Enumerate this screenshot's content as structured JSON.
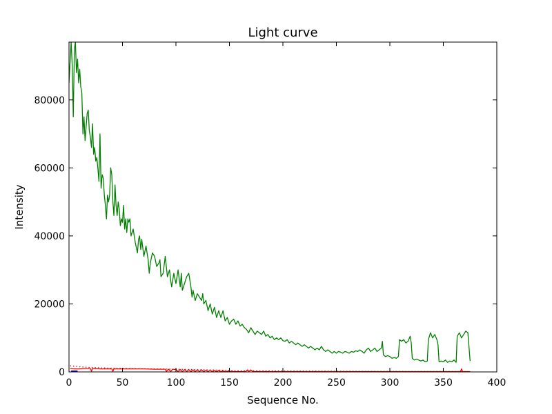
{
  "chart_data": {
    "type": "line",
    "title": "Light curve",
    "xlabel": "Sequence No.",
    "ylabel": "Intensity",
    "xlim": [
      0,
      400
    ],
    "ylim": [
      0,
      97000
    ],
    "xticks": [
      0,
      50,
      100,
      150,
      200,
      250,
      300,
      350,
      400
    ],
    "yticks": [
      0,
      20000,
      40000,
      60000,
      80000
    ],
    "xtick_labels": [
      "0",
      "50",
      "100",
      "150",
      "200",
      "250",
      "300",
      "350",
      "400"
    ],
    "ytick_labels": [
      "0",
      "20000",
      "40000",
      "60000",
      "80000"
    ],
    "grid": false,
    "legend": "none",
    "series": [
      {
        "color": "#008000",
        "style": "solid",
        "points": [
          [
            0,
            85000
          ],
          [
            2,
            97000
          ],
          [
            3,
            90000
          ],
          [
            4,
            75000
          ],
          [
            5,
            95000
          ],
          [
            6,
            97000
          ],
          [
            7,
            88000
          ],
          [
            8,
            92000
          ],
          [
            9,
            85000
          ],
          [
            10,
            89000
          ],
          [
            11,
            84000
          ],
          [
            12,
            82000
          ],
          [
            13,
            70000
          ],
          [
            14,
            75000
          ],
          [
            15,
            68000
          ],
          [
            16,
            72000
          ],
          [
            17,
            76000
          ],
          [
            18,
            77000
          ],
          [
            19,
            71000
          ],
          [
            20,
            69000
          ],
          [
            21,
            66000
          ],
          [
            22,
            73000
          ],
          [
            23,
            64000
          ],
          [
            24,
            66000
          ],
          [
            25,
            62000
          ],
          [
            26,
            63000
          ],
          [
            27,
            60000
          ],
          [
            28,
            56000
          ],
          [
            29,
            70000
          ],
          [
            30,
            54000
          ],
          [
            31,
            58000
          ],
          [
            32,
            57000
          ],
          [
            33,
            52000
          ],
          [
            34,
            49000
          ],
          [
            35,
            45000
          ],
          [
            36,
            52000
          ],
          [
            37,
            50000
          ],
          [
            38,
            52000
          ],
          [
            39,
            60000
          ],
          [
            40,
            58000
          ],
          [
            41,
            50000
          ],
          [
            42,
            46000
          ],
          [
            43,
            55000
          ],
          [
            44,
            49000
          ],
          [
            45,
            46000
          ],
          [
            46,
            50000
          ],
          [
            47,
            48000
          ],
          [
            48,
            43000
          ],
          [
            49,
            45000
          ],
          [
            50,
            44000
          ],
          [
            51,
            49000
          ],
          [
            52,
            42000
          ],
          [
            53,
            45000
          ],
          [
            54,
            41000
          ],
          [
            55,
            45000
          ],
          [
            56,
            44000
          ],
          [
            57,
            45000
          ],
          [
            58,
            40000
          ],
          [
            60,
            42000
          ],
          [
            62,
            38000
          ],
          [
            64,
            35000
          ],
          [
            65,
            39000
          ],
          [
            66,
            40000
          ],
          [
            67,
            36000
          ],
          [
            68,
            39000
          ],
          [
            70,
            34000
          ],
          [
            72,
            37000
          ],
          [
            74,
            33000
          ],
          [
            75,
            29000
          ],
          [
            76,
            32000
          ],
          [
            78,
            35000
          ],
          [
            80,
            34000
          ],
          [
            82,
            31000
          ],
          [
            84,
            32000
          ],
          [
            85,
            33000
          ],
          [
            86,
            28000
          ],
          [
            88,
            29000
          ],
          [
            90,
            34000
          ],
          [
            92,
            28000
          ],
          [
            94,
            30000
          ],
          [
            95,
            27000
          ],
          [
            96,
            25000
          ],
          [
            98,
            29000
          ],
          [
            100,
            26000
          ],
          [
            102,
            30000
          ],
          [
            104,
            25000
          ],
          [
            105,
            29000
          ],
          [
            106,
            24000
          ],
          [
            108,
            26000
          ],
          [
            110,
            28000
          ],
          [
            112,
            29000
          ],
          [
            114,
            25000
          ],
          [
            115,
            22000
          ],
          [
            116,
            24000
          ],
          [
            118,
            21000
          ],
          [
            120,
            23000
          ],
          [
            122,
            22000
          ],
          [
            124,
            21000
          ],
          [
            125,
            23000
          ],
          [
            126,
            20000
          ],
          [
            128,
            21000
          ],
          [
            130,
            18000
          ],
          [
            132,
            20000
          ],
          [
            134,
            17000
          ],
          [
            136,
            19000
          ],
          [
            138,
            16000
          ],
          [
            140,
            18000
          ],
          [
            142,
            16000
          ],
          [
            144,
            18000
          ],
          [
            146,
            15000
          ],
          [
            148,
            16000
          ],
          [
            150,
            14000
          ],
          [
            152,
            15000
          ],
          [
            154,
            15500
          ],
          [
            156,
            14000
          ],
          [
            158,
            15000
          ],
          [
            160,
            13500
          ],
          [
            162,
            14000
          ],
          [
            164,
            13000
          ],
          [
            166,
            12500
          ],
          [
            168,
            11500
          ],
          [
            170,
            13000
          ],
          [
            172,
            12000
          ],
          [
            174,
            11000
          ],
          [
            176,
            12000
          ],
          [
            178,
            11500
          ],
          [
            180,
            11000
          ],
          [
            182,
            12000
          ],
          [
            184,
            10500
          ],
          [
            186,
            11000
          ],
          [
            188,
            10000
          ],
          [
            190,
            10500
          ],
          [
            192,
            9500
          ],
          [
            194,
            10000
          ],
          [
            196,
            9500
          ],
          [
            198,
            10000
          ],
          [
            200,
            9200
          ],
          [
            202,
            9000
          ],
          [
            204,
            9500
          ],
          [
            206,
            8500
          ],
          [
            208,
            9000
          ],
          [
            210,
            8500
          ],
          [
            212,
            8000
          ],
          [
            214,
            8500
          ],
          [
            216,
            8000
          ],
          [
            218,
            7500
          ],
          [
            220,
            8000
          ],
          [
            222,
            7500
          ],
          [
            224,
            7000
          ],
          [
            226,
            7500
          ],
          [
            228,
            7000
          ],
          [
            230,
            6500
          ],
          [
            232,
            7000
          ],
          [
            234,
            6500
          ],
          [
            236,
            7500
          ],
          [
            238,
            6500
          ],
          [
            240,
            6000
          ],
          [
            242,
            6500
          ],
          [
            244,
            6000
          ],
          [
            246,
            5500
          ],
          [
            248,
            6000
          ],
          [
            250,
            5500
          ],
          [
            252,
            6000
          ],
          [
            254,
            5800
          ],
          [
            256,
            5500
          ],
          [
            258,
            6000
          ],
          [
            260,
            5800
          ],
          [
            262,
            5500
          ],
          [
            264,
            6000
          ],
          [
            266,
            5800
          ],
          [
            268,
            6200
          ],
          [
            270,
            6000
          ],
          [
            272,
            6500
          ],
          [
            274,
            6000
          ],
          [
            276,
            5500
          ],
          [
            278,
            6500
          ],
          [
            280,
            7000
          ],
          [
            282,
            6000
          ],
          [
            284,
            6500
          ],
          [
            286,
            7000
          ],
          [
            288,
            6000
          ],
          [
            290,
            6500
          ],
          [
            292,
            7000
          ],
          [
            293,
            9000
          ],
          [
            294,
            5000
          ],
          [
            296,
            4500
          ],
          [
            298,
            4800
          ],
          [
            300,
            4500
          ],
          [
            302,
            4000
          ],
          [
            304,
            4200
          ],
          [
            306,
            4000
          ],
          [
            308,
            4500
          ],
          [
            309,
            9500
          ],
          [
            311,
            9000
          ],
          [
            313,
            9500
          ],
          [
            315,
            8500
          ],
          [
            317,
            9000
          ],
          [
            319,
            10500
          ],
          [
            320,
            8500
          ],
          [
            321,
            4000
          ],
          [
            323,
            3500
          ],
          [
            325,
            3800
          ],
          [
            327,
            3500
          ],
          [
            329,
            3200
          ],
          [
            331,
            3500
          ],
          [
            333,
            3000
          ],
          [
            335,
            3200
          ],
          [
            336,
            9500
          ],
          [
            338,
            11500
          ],
          [
            340,
            10000
          ],
          [
            342,
            11000
          ],
          [
            344,
            9500
          ],
          [
            345,
            8000
          ],
          [
            346,
            3000
          ],
          [
            348,
            3200
          ],
          [
            350,
            3000
          ],
          [
            352,
            3500
          ],
          [
            354,
            2800
          ],
          [
            356,
            3200
          ],
          [
            358,
            3000
          ],
          [
            360,
            3500
          ],
          [
            362,
            2800
          ],
          [
            363,
            10500
          ],
          [
            365,
            11500
          ],
          [
            367,
            10000
          ],
          [
            369,
            11000
          ],
          [
            371,
            12000
          ],
          [
            373,
            11500
          ],
          [
            375,
            3200
          ]
        ]
      },
      {
        "color": "#ff0000",
        "style": "solid",
        "points": [
          [
            1,
            1000
          ],
          [
            5,
            900
          ],
          [
            10,
            900
          ],
          [
            15,
            1000
          ],
          [
            20,
            1000
          ],
          [
            21,
            200
          ],
          [
            22,
            1000
          ],
          [
            30,
            900
          ],
          [
            40,
            900
          ],
          [
            41,
            200
          ],
          [
            42,
            900
          ],
          [
            50,
            900
          ],
          [
            60,
            900
          ],
          [
            70,
            900
          ],
          [
            80,
            800
          ],
          [
            90,
            800
          ],
          [
            91,
            150
          ],
          [
            93,
            800
          ],
          [
            95,
            150
          ],
          [
            97,
            800
          ],
          [
            100,
            700
          ],
          [
            102,
            100
          ],
          [
            104,
            700
          ],
          [
            106,
            100
          ],
          [
            108,
            700
          ],
          [
            110,
            100
          ],
          [
            112,
            700
          ],
          [
            114,
            100
          ],
          [
            116,
            600
          ],
          [
            118,
            100
          ],
          [
            120,
            600
          ],
          [
            122,
            100
          ],
          [
            124,
            600
          ],
          [
            126,
            100
          ],
          [
            128,
            500
          ],
          [
            130,
            100
          ],
          [
            132,
            500
          ],
          [
            134,
            100
          ],
          [
            136,
            400
          ],
          [
            138,
            100
          ],
          [
            140,
            400
          ],
          [
            142,
            100
          ],
          [
            144,
            300
          ],
          [
            146,
            100
          ],
          [
            148,
            200
          ],
          [
            155,
            100
          ],
          [
            165,
            100
          ],
          [
            167,
            600
          ],
          [
            168,
            100
          ],
          [
            170,
            600
          ],
          [
            172,
            100
          ],
          [
            200,
            100
          ],
          [
            250,
            100
          ],
          [
            300,
            100
          ],
          [
            350,
            100
          ],
          [
            366,
            100
          ],
          [
            367,
            900
          ],
          [
            368,
            100
          ],
          [
            375,
            100
          ]
        ]
      },
      {
        "color": "#ff0000",
        "style": "dotted",
        "points": [
          [
            1,
            1800
          ],
          [
            10,
            1500
          ],
          [
            20,
            1300
          ],
          [
            40,
            1100
          ],
          [
            60,
            1000
          ],
          [
            80,
            900
          ],
          [
            100,
            800
          ],
          [
            130,
            600
          ],
          [
            160,
            400
          ],
          [
            200,
            300
          ],
          [
            250,
            200
          ],
          [
            300,
            150
          ],
          [
            375,
            100
          ]
        ]
      },
      {
        "color": "#0000ff",
        "style": "solid",
        "points": [
          [
            2,
            0
          ],
          [
            8,
            0
          ]
        ]
      }
    ]
  }
}
